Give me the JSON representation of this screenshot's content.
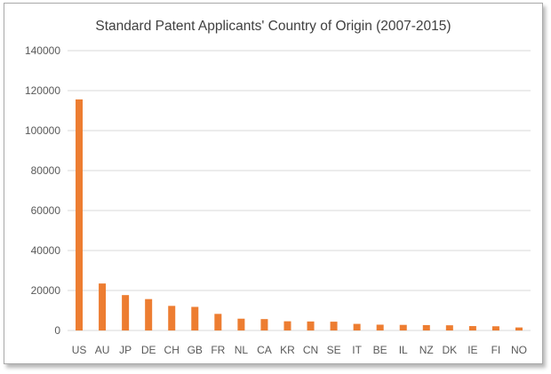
{
  "chart_data": {
    "type": "bar",
    "title": "Standard Patent Applicants' Country of Origin (2007-2015)",
    "xlabel": "",
    "ylabel": "",
    "categories": [
      "US",
      "AU",
      "JP",
      "DE",
      "CH",
      "GB",
      "FR",
      "NL",
      "CA",
      "KR",
      "CN",
      "SE",
      "IT",
      "BE",
      "IL",
      "NZ",
      "DK",
      "IE",
      "FI",
      "NO"
    ],
    "values": [
      115600,
      23500,
      17700,
      15700,
      12300,
      11800,
      8300,
      5900,
      5700,
      4600,
      4500,
      4400,
      3300,
      2900,
      2800,
      2700,
      2600,
      2200,
      2100,
      1500
    ],
    "ylim": [
      0,
      140000
    ],
    "yticks": [
      0,
      20000,
      40000,
      60000,
      80000,
      100000,
      120000,
      140000
    ],
    "grid": true,
    "legend": "none",
    "bar_color": "#ED7D31",
    "grid_color": "#D9D9D9"
  }
}
